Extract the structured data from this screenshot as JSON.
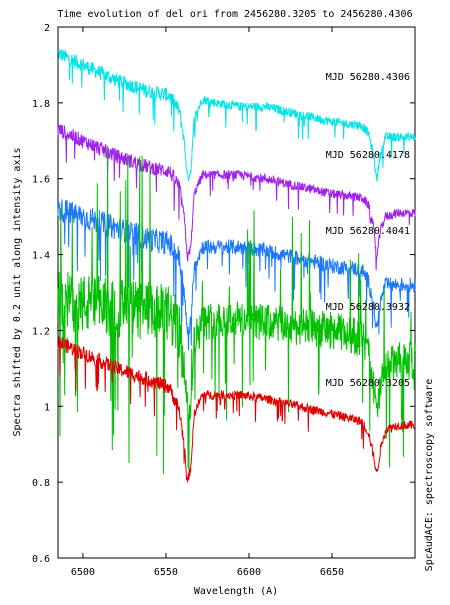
{
  "chart_data": {
    "type": "line",
    "title": "Time evolution of del ori  from 2456280.3205 to 2456280.4306",
    "xlabel": "Wavelength (A)",
    "ylabel": "Spectra shifted by 0.2 unit along intensity axis",
    "side_label": "SpcAudACE: spectroscopy software",
    "xlim": [
      6485,
      6700
    ],
    "ylim": [
      0.6,
      2.0
    ],
    "x_ticks": [
      6500,
      6550,
      6600,
      6650
    ],
    "y_ticks": [
      0.6,
      0.8,
      1.0,
      1.2,
      1.4,
      1.6,
      1.8,
      2.0
    ],
    "y_tick_labels": [
      "0.6",
      "0.8",
      "1",
      "1.2",
      "1.4",
      "1.6",
      "1.8",
      "2"
    ],
    "grid": false,
    "series": [
      {
        "name": "MJD 56280.4306",
        "color": "#00e5e5",
        "noise": 0.012,
        "points": [
          [
            6485,
            1.93
          ],
          [
            6500,
            1.9
          ],
          [
            6520,
            1.86
          ],
          [
            6540,
            1.83
          ],
          [
            6552,
            1.82
          ],
          [
            6558,
            1.78
          ],
          [
            6561,
            1.7
          ],
          [
            6563,
            1.6
          ],
          [
            6565,
            1.62
          ],
          [
            6567,
            1.76
          ],
          [
            6572,
            1.81
          ],
          [
            6580,
            1.8
          ],
          [
            6595,
            1.79
          ],
          [
            6610,
            1.79
          ],
          [
            6630,
            1.77
          ],
          [
            6650,
            1.75
          ],
          [
            6668,
            1.74
          ],
          [
            6672,
            1.72
          ],
          [
            6675,
            1.66
          ],
          [
            6677,
            1.6
          ],
          [
            6679,
            1.66
          ],
          [
            6682,
            1.71
          ],
          [
            6690,
            1.71
          ],
          [
            6700,
            1.71
          ]
        ]
      },
      {
        "name": "MJD 56280.4178",
        "color": "#a020f0",
        "noise": 0.012,
        "points": [
          [
            6485,
            1.73
          ],
          [
            6500,
            1.7
          ],
          [
            6520,
            1.66
          ],
          [
            6540,
            1.63
          ],
          [
            6552,
            1.62
          ],
          [
            6558,
            1.58
          ],
          [
            6561,
            1.5
          ],
          [
            6563,
            1.39
          ],
          [
            6565,
            1.42
          ],
          [
            6567,
            1.56
          ],
          [
            6572,
            1.61
          ],
          [
            6580,
            1.61
          ],
          [
            6595,
            1.61
          ],
          [
            6610,
            1.6
          ],
          [
            6630,
            1.58
          ],
          [
            6650,
            1.56
          ],
          [
            6668,
            1.55
          ],
          [
            6672,
            1.53
          ],
          [
            6675,
            1.47
          ],
          [
            6677,
            1.39
          ],
          [
            6679,
            1.46
          ],
          [
            6682,
            1.5
          ],
          [
            6690,
            1.51
          ],
          [
            6700,
            1.51
          ]
        ]
      },
      {
        "name": "MJD 56280.4041",
        "color": "#1e78ff",
        "noise": 0.02,
        "points": [
          [
            6485,
            1.52
          ],
          [
            6500,
            1.5
          ],
          [
            6520,
            1.47
          ],
          [
            6540,
            1.44
          ],
          [
            6552,
            1.43
          ],
          [
            6558,
            1.39
          ],
          [
            6561,
            1.3
          ],
          [
            6563,
            1.19
          ],
          [
            6565,
            1.22
          ],
          [
            6567,
            1.37
          ],
          [
            6572,
            1.42
          ],
          [
            6580,
            1.42
          ],
          [
            6595,
            1.42
          ],
          [
            6610,
            1.41
          ],
          [
            6630,
            1.39
          ],
          [
            6650,
            1.37
          ],
          [
            6668,
            1.36
          ],
          [
            6672,
            1.33
          ],
          [
            6675,
            1.27
          ],
          [
            6677,
            1.2
          ],
          [
            6679,
            1.27
          ],
          [
            6682,
            1.32
          ],
          [
            6690,
            1.32
          ],
          [
            6700,
            1.32
          ]
        ]
      },
      {
        "name": "MJD 56280.3932",
        "color": "#00c000",
        "noise": 0.05,
        "points": [
          [
            6485,
            1.28
          ],
          [
            6500,
            1.27
          ],
          [
            6520,
            1.26
          ],
          [
            6540,
            1.25
          ],
          [
            6552,
            1.24
          ],
          [
            6558,
            1.2
          ],
          [
            6561,
            1.1
          ],
          [
            6563,
            0.99
          ],
          [
            6565,
            1.02
          ],
          [
            6567,
            1.17
          ],
          [
            6572,
            1.22
          ],
          [
            6580,
            1.23
          ],
          [
            6595,
            1.23
          ],
          [
            6610,
            1.22
          ],
          [
            6630,
            1.21
          ],
          [
            6650,
            1.2
          ],
          [
            6668,
            1.18
          ],
          [
            6672,
            1.14
          ],
          [
            6675,
            1.06
          ],
          [
            6677,
            0.97
          ],
          [
            6679,
            1.05
          ],
          [
            6682,
            1.1
          ],
          [
            6690,
            1.12
          ],
          [
            6700,
            1.12
          ]
        ]
      },
      {
        "name": "MJD 56280.3205",
        "color": "#e00000",
        "noise": 0.012,
        "points": [
          [
            6485,
            1.17
          ],
          [
            6500,
            1.14
          ],
          [
            6520,
            1.1
          ],
          [
            6540,
            1.07
          ],
          [
            6552,
            1.05
          ],
          [
            6558,
            0.99
          ],
          [
            6561,
            0.9
          ],
          [
            6563,
            0.8
          ],
          [
            6565,
            0.84
          ],
          [
            6567,
            0.98
          ],
          [
            6572,
            1.03
          ],
          [
            6580,
            1.03
          ],
          [
            6595,
            1.03
          ],
          [
            6610,
            1.02
          ],
          [
            6630,
            1.0
          ],
          [
            6650,
            0.98
          ],
          [
            6668,
            0.96
          ],
          [
            6672,
            0.93
          ],
          [
            6675,
            0.87
          ],
          [
            6677,
            0.82
          ],
          [
            6679,
            0.88
          ],
          [
            6682,
            0.94
          ],
          [
            6690,
            0.95
          ],
          [
            6700,
            0.95
          ]
        ]
      }
    ]
  }
}
